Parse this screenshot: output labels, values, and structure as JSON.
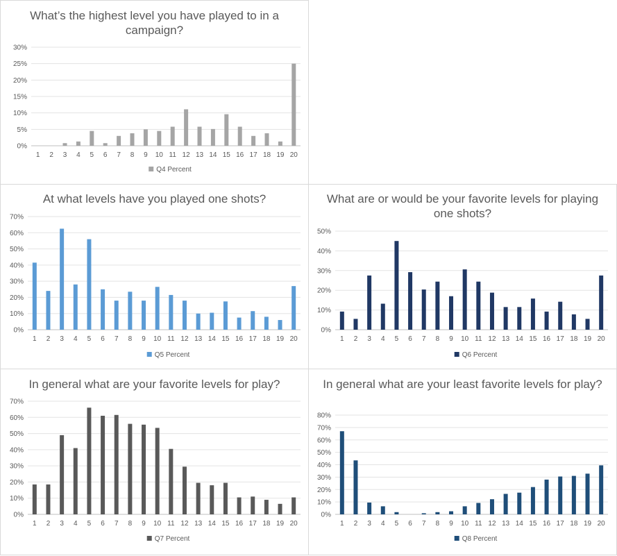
{
  "chart_data": [
    {
      "type": "bar",
      "title": "What’s the highest level you have played to in a campaign?",
      "categories": [
        "1",
        "2",
        "3",
        "4",
        "5",
        "6",
        "7",
        "8",
        "9",
        "10",
        "11",
        "12",
        "13",
        "14",
        "15",
        "16",
        "17",
        "18",
        "19",
        "20"
      ],
      "series": [
        {
          "name": "Q4 Percent",
          "color": "#a5a5a5",
          "values": [
            0,
            0,
            0.8,
            1.3,
            4.5,
            0.8,
            3,
            3.8,
            5,
            4.5,
            5.8,
            11.1,
            5.8,
            5.1,
            9.6,
            5.8,
            3,
            3.8,
            1.3,
            25
          ]
        }
      ],
      "ylim": [
        0,
        30
      ],
      "yticks": [
        "0%",
        "5%",
        "10%",
        "15%",
        "20%",
        "25%",
        "30%"
      ],
      "grid": true,
      "legend": "bottom"
    },
    {
      "type": "bar",
      "title": "At what levels have you played one shots?",
      "categories": [
        "1",
        "2",
        "3",
        "4",
        "5",
        "6",
        "7",
        "8",
        "9",
        "10",
        "11",
        "12",
        "13",
        "14",
        "15",
        "16",
        "17",
        "18",
        "19",
        "20"
      ],
      "series": [
        {
          "name": "Q5 Percent",
          "color": "#5b9bd5",
          "values": [
            41.5,
            24,
            62.5,
            28,
            56,
            25,
            18,
            23.5,
            18,
            26.5,
            21.5,
            18,
            10,
            10.5,
            17.5,
            7.5,
            11.5,
            8,
            6,
            27
          ]
        }
      ],
      "ylim": [
        0,
        70
      ],
      "yticks": [
        "0%",
        "10%",
        "20%",
        "30%",
        "40%",
        "50%",
        "60%",
        "70%"
      ],
      "grid": true,
      "legend": "bottom"
    },
    {
      "type": "bar",
      "title": "What are or would be your favorite levels for playing one shots?",
      "categories": [
        "1",
        "2",
        "3",
        "4",
        "5",
        "6",
        "7",
        "8",
        "9",
        "10",
        "11",
        "12",
        "13",
        "14",
        "15",
        "16",
        "17",
        "18",
        "19",
        "20"
      ],
      "series": [
        {
          "name": "Q6 Percent",
          "color": "#203864",
          "values": [
            9.2,
            5.5,
            27.5,
            13.2,
            45,
            29.2,
            20.4,
            24.4,
            17,
            30.6,
            24.4,
            18.8,
            11.5,
            11.5,
            15.8,
            9.2,
            14.2,
            7.8,
            5.5,
            27.5
          ]
        }
      ],
      "ylim": [
        0,
        50
      ],
      "yticks": [
        "0%",
        "10%",
        "20%",
        "30%",
        "40%",
        "50%"
      ],
      "grid": true,
      "legend": "bottom"
    },
    {
      "type": "bar",
      "title": "In general what are your favorite levels for play?",
      "categories": [
        "1",
        "2",
        "3",
        "4",
        "5",
        "6",
        "7",
        "8",
        "9",
        "10",
        "11",
        "12",
        "13",
        "14",
        "15",
        "16",
        "17",
        "18",
        "19",
        "20"
      ],
      "series": [
        {
          "name": "Q7 Percent",
          "color": "#595959",
          "values": [
            18.5,
            18.5,
            49,
            41,
            66,
            61,
            61.5,
            56,
            55.5,
            53.5,
            40.5,
            29.5,
            19.5,
            18,
            19.5,
            10.5,
            11,
            9,
            6.5,
            10.5
          ]
        }
      ],
      "ylim": [
        0,
        70
      ],
      "yticks": [
        "0%",
        "10%",
        "20%",
        "30%",
        "40%",
        "50%",
        "60%",
        "70%"
      ],
      "grid": true,
      "legend": "bottom"
    },
    {
      "type": "bar",
      "title": "In general what are your least favorite levels for play?",
      "categories": [
        "1",
        "2",
        "3",
        "4",
        "5",
        "6",
        "7",
        "8",
        "9",
        "10",
        "11",
        "12",
        "13",
        "14",
        "15",
        "16",
        "17",
        "18",
        "19",
        "20"
      ],
      "series": [
        {
          "name": "Q8 Percent",
          "color": "#1f4e79",
          "values": [
            67,
            43.5,
            9.5,
            6.5,
            1.8,
            0,
            0.9,
            1.8,
            2.5,
            6.5,
            9.2,
            12.2,
            16.5,
            17.5,
            22,
            28,
            30.5,
            31,
            32.8,
            39.5
          ]
        }
      ],
      "ylim": [
        0,
        80
      ],
      "yticks": [
        "0%",
        "10%",
        "20%",
        "30%",
        "40%",
        "50%",
        "60%",
        "70%",
        "80%"
      ],
      "grid": true,
      "legend": "bottom"
    }
  ]
}
